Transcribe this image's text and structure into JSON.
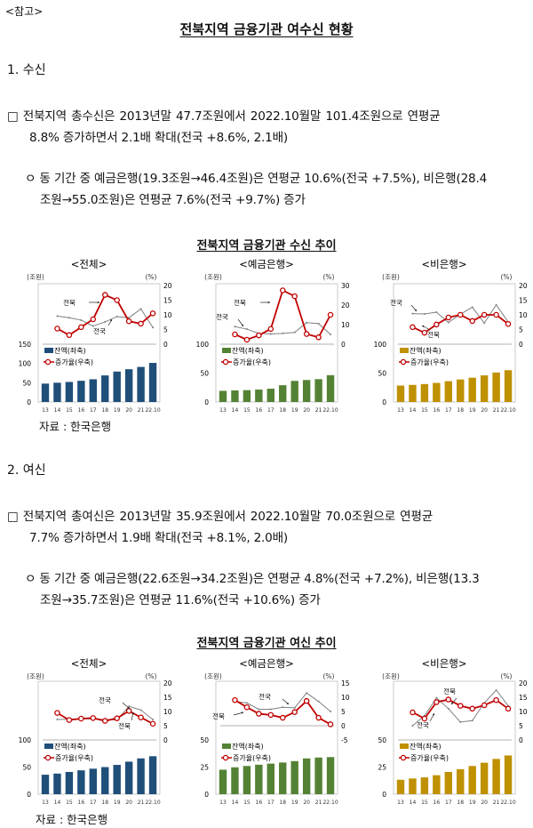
{
  "header": {
    "ref_label": "<참고>",
    "title": "전북지역 금융기관 여수신 현황"
  },
  "sections": [
    {
      "heading": "1. 수신",
      "main_lines": [
        "□  전북지역  총수신은  2013년말  47.7조원에서  2022.10월말  101.4조원으로  연평균",
        "8.8% 증가하면서 2.1배 확대(전국 +8.6%, 2.1배)"
      ],
      "sub_lines": [
        "ㅇ 동 기간 중 예금은행(19.3조원→46.4조원)은 연평균 10.6%(전국 +7.5%), 비은행(28.4",
        "조원→55.0조원)은 연평균 7.6%(전국 +9.7%) 증가"
      ],
      "chart_title": "전북지역 금융기관 수신 추이",
      "source": "자료 : 한국은행"
    },
    {
      "heading": "2. 여신",
      "main_lines": [
        "□  전북지역  총여신은  2013년말  35.9조원에서  2022.10월말  70.0조원으로  연평균",
        "7.7% 증가하면서 1.9배 확대(전국 +8.1%, 2.0배)"
      ],
      "sub_lines": [
        "ㅇ 동 기간 중 예금은행(22.6조원→34.2조원)은 연평균 4.8%(전국 +7.2%), 비은행(13.3",
        "조원→35.7조원)은 연평균 11.6%(전국 +10.6%) 증가"
      ],
      "chart_title": "전북지역 금융기관 여신 추이",
      "source": "자료 : 한국은행"
    }
  ],
  "colors": {
    "total": "#1f4e79",
    "bank": "#548235",
    "nonbank": "#bf9000",
    "jeonbuk_line": "#c00000",
    "national_line": "#808080"
  },
  "chart_data": [
    {
      "type": "bar+line",
      "title": "<전체>",
      "left_unit": "(조원)",
      "right_unit": "(%)",
      "categories": [
        "13",
        "14",
        "15",
        "16",
        "17",
        "18",
        "19",
        "20",
        "21",
        "22.10"
      ],
      "left_ticks": [
        0,
        50,
        100,
        150
      ],
      "right_ticks": [
        0,
        5,
        10,
        15,
        20
      ],
      "ylim_left": [
        0,
        150
      ],
      "ylim_right": [
        0,
        20
      ],
      "bar_color": "#1f4e79",
      "series": [
        {
          "name": "잔액(좌축)",
          "axis": "left",
          "values": [
            47.7,
            50,
            52,
            55,
            59,
            69,
            79,
            85,
            91,
            101.4
          ]
        },
        {
          "name": "증가율(우축)",
          "label": "전북",
          "axis": "right",
          "values": [
            null,
            5.3,
            3.1,
            5.8,
            8.5,
            16.8,
            15.0,
            7.8,
            7.0,
            10.5
          ]
        },
        {
          "label": "전국",
          "axis": "right",
          "values": [
            null,
            9.6,
            9.0,
            8.2,
            6.2,
            7.6,
            9.4,
            9.0,
            12.0,
            5.7
          ]
        }
      ]
    },
    {
      "type": "bar+line",
      "title": "<예금은행>",
      "left_unit": "(조원)",
      "right_unit": "(%)",
      "categories": [
        "13",
        "14",
        "15",
        "16",
        "17",
        "18",
        "19",
        "20",
        "21",
        "22.10"
      ],
      "left_ticks": [
        0,
        50,
        100
      ],
      "right_ticks": [
        0,
        10,
        20,
        30
      ],
      "ylim_left": [
        0,
        100
      ],
      "ylim_right": [
        0,
        30
      ],
      "bar_color": "#548235",
      "series": [
        {
          "name": "잔액(좌축)",
          "axis": "left",
          "values": [
            19.3,
            20,
            20.5,
            21.5,
            23,
            29,
            36.5,
            38,
            39.5,
            46.4
          ]
        },
        {
          "name": "증가율(우축)",
          "label": "전북",
          "axis": "right",
          "values": [
            null,
            5.0,
            2.3,
            4.5,
            7.8,
            27.5,
            24.5,
            5.2,
            3.5,
            15.0
          ]
        },
        {
          "label": "전국",
          "axis": "right",
          "values": [
            null,
            9.0,
            7.7,
            5.5,
            5.2,
            5.5,
            6.0,
            11.0,
            10.5,
            5.0
          ]
        }
      ]
    },
    {
      "type": "bar+line",
      "title": "<비은행>",
      "left_unit": "(조원)",
      "right_unit": "(%)",
      "categories": [
        "13",
        "14",
        "15",
        "16",
        "17",
        "18",
        "19",
        "20",
        "21",
        "22.10"
      ],
      "left_ticks": [
        0,
        50,
        100
      ],
      "right_ticks": [
        0,
        5,
        10,
        15,
        20
      ],
      "ylim_left": [
        0,
        100
      ],
      "ylim_right": [
        0,
        20
      ],
      "bar_color": "#bf9000",
      "series": [
        {
          "name": "잔액(좌축)",
          "axis": "left",
          "values": [
            28.4,
            29.5,
            31,
            33,
            36,
            39,
            42,
            46,
            51,
            55.0
          ]
        },
        {
          "name": "증가율(우축)",
          "label": "전북",
          "axis": "right",
          "values": [
            null,
            5.8,
            3.9,
            6.7,
            9.1,
            10.0,
            7.9,
            10.0,
            10.0,
            6.9
          ]
        },
        {
          "label": "전국",
          "axis": "right",
          "values": [
            null,
            10.4,
            10.3,
            10.9,
            7.4,
            10.2,
            12.6,
            7.2,
            13.4,
            7.6
          ]
        }
      ]
    },
    {
      "type": "bar+line",
      "title": "<전체>",
      "left_unit": "(조원)",
      "right_unit": "(%)",
      "categories": [
        "13",
        "14",
        "15",
        "16",
        "17",
        "18",
        "19",
        "20",
        "21",
        "22.10"
      ],
      "left_ticks": [
        0,
        50,
        100
      ],
      "right_ticks": [
        0,
        5,
        10,
        15,
        20
      ],
      "ylim_left": [
        0,
        100
      ],
      "ylim_right": [
        0,
        20
      ],
      "bar_color": "#1f4e79",
      "series": [
        {
          "name": "잔액(좌축)",
          "axis": "left",
          "values": [
            35.9,
            38,
            41,
            44,
            47,
            50,
            54,
            60,
            66,
            70.0
          ]
        },
        {
          "name": "증가율(우축)",
          "label": "전북",
          "axis": "right",
          "values": [
            null,
            9.5,
            7.0,
            7.5,
            7.7,
            6.7,
            7.6,
            10.2,
            7.9,
            5.7
          ]
        },
        {
          "label": "전국",
          "axis": "right",
          "values": [
            null,
            7.2,
            7.3,
            7.5,
            7.3,
            7.2,
            7.0,
            11.8,
            10.5,
            7.2
          ]
        }
      ]
    },
    {
      "type": "bar+line",
      "title": "<예금은행>",
      "left_unit": "(조원)",
      "right_unit": "(%)",
      "categories": [
        "13",
        "14",
        "15",
        "16",
        "17",
        "18",
        "19",
        "20",
        "21",
        "22.10"
      ],
      "left_ticks": [
        0,
        25,
        50
      ],
      "right_ticks": [
        -5,
        0,
        5,
        10,
        15
      ],
      "ylim_left": [
        0,
        50
      ],
      "ylim_right": [
        -5,
        15
      ],
      "bar_color": "#548235",
      "series": [
        {
          "name": "잔액(좌축)",
          "axis": "left",
          "values": [
            22.6,
            24.8,
            26,
            27.2,
            28.2,
            29.2,
            30.5,
            33,
            33.8,
            34.2
          ]
        },
        {
          "name": "증가율(우축)",
          "label": "전북",
          "axis": "right",
          "values": [
            null,
            9.0,
            6.5,
            4.2,
            3.8,
            2.8,
            4.8,
            8.7,
            2.8,
            0.5
          ]
        },
        {
          "label": "전국",
          "axis": "right",
          "values": [
            null,
            8.5,
            8.0,
            5.8,
            5.8,
            6.5,
            6.3,
            11.5,
            8.5,
            5.0
          ]
        }
      ]
    },
    {
      "type": "bar+line",
      "title": "<비은행>",
      "left_unit": "(조원)",
      "right_unit": "(%)",
      "categories": [
        "13",
        "14",
        "15",
        "16",
        "17",
        "18",
        "19",
        "20",
        "21",
        "22.10"
      ],
      "left_ticks": [
        0,
        25,
        50
      ],
      "right_ticks": [
        0,
        5,
        10,
        15,
        20
      ],
      "ylim_left": [
        0,
        50
      ],
      "ylim_right": [
        0,
        20
      ],
      "bar_color": "#bf9000",
      "series": [
        {
          "name": "잔액(좌축)",
          "axis": "left",
          "values": [
            13.3,
            14.5,
            15.5,
            17.5,
            20.5,
            23,
            26,
            29,
            32.5,
            35.7
          ]
        },
        {
          "name": "증가율(우축)",
          "label": "전북",
          "axis": "right",
          "values": [
            null,
            9.7,
            7.5,
            13.3,
            14.2,
            12.0,
            11.0,
            12.2,
            14.0,
            11.0
          ]
        },
        {
          "label": "전국",
          "axis": "right",
          "values": [
            null,
            5.0,
            8.5,
            14.8,
            11.0,
            6.3,
            6.8,
            13.0,
            17.5,
            12.0
          ]
        }
      ]
    }
  ]
}
